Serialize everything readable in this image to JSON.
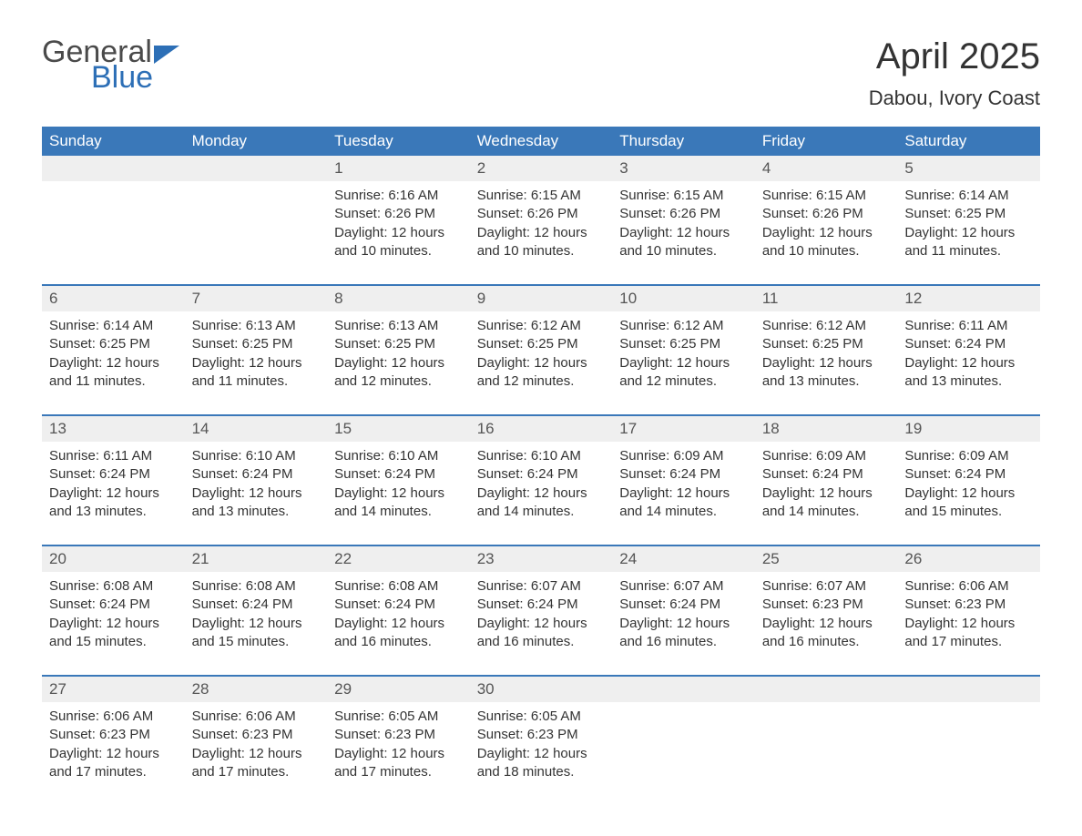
{
  "brand": {
    "word1": "General",
    "word2": "Blue"
  },
  "title": "April 2025",
  "location": "Dabou, Ivory Coast",
  "styling": {
    "header_bg": "#3a78b9",
    "header_fg": "#ffffff",
    "daynum_bg": "#efefef",
    "page_bg": "#ffffff",
    "text_color": "#333333",
    "brand_blue": "#2d6fb6",
    "font_family": "Arial",
    "title_fontsize_pt": 30,
    "location_fontsize_pt": 16,
    "header_fontsize_pt": 13,
    "body_fontsize_pt": 11
  },
  "day_headers": [
    "Sunday",
    "Monday",
    "Tuesday",
    "Wednesday",
    "Thursday",
    "Friday",
    "Saturday"
  ],
  "weeks": [
    [
      null,
      null,
      {
        "n": "1",
        "sr": "Sunrise: 6:16 AM",
        "ss": "Sunset: 6:26 PM",
        "d1": "Daylight: 12 hours",
        "d2": "and 10 minutes."
      },
      {
        "n": "2",
        "sr": "Sunrise: 6:15 AM",
        "ss": "Sunset: 6:26 PM",
        "d1": "Daylight: 12 hours",
        "d2": "and 10 minutes."
      },
      {
        "n": "3",
        "sr": "Sunrise: 6:15 AM",
        "ss": "Sunset: 6:26 PM",
        "d1": "Daylight: 12 hours",
        "d2": "and 10 minutes."
      },
      {
        "n": "4",
        "sr": "Sunrise: 6:15 AM",
        "ss": "Sunset: 6:26 PM",
        "d1": "Daylight: 12 hours",
        "d2": "and 10 minutes."
      },
      {
        "n": "5",
        "sr": "Sunrise: 6:14 AM",
        "ss": "Sunset: 6:25 PM",
        "d1": "Daylight: 12 hours",
        "d2": "and 11 minutes."
      }
    ],
    [
      {
        "n": "6",
        "sr": "Sunrise: 6:14 AM",
        "ss": "Sunset: 6:25 PM",
        "d1": "Daylight: 12 hours",
        "d2": "and 11 minutes."
      },
      {
        "n": "7",
        "sr": "Sunrise: 6:13 AM",
        "ss": "Sunset: 6:25 PM",
        "d1": "Daylight: 12 hours",
        "d2": "and 11 minutes."
      },
      {
        "n": "8",
        "sr": "Sunrise: 6:13 AM",
        "ss": "Sunset: 6:25 PM",
        "d1": "Daylight: 12 hours",
        "d2": "and 12 minutes."
      },
      {
        "n": "9",
        "sr": "Sunrise: 6:12 AM",
        "ss": "Sunset: 6:25 PM",
        "d1": "Daylight: 12 hours",
        "d2": "and 12 minutes."
      },
      {
        "n": "10",
        "sr": "Sunrise: 6:12 AM",
        "ss": "Sunset: 6:25 PM",
        "d1": "Daylight: 12 hours",
        "d2": "and 12 minutes."
      },
      {
        "n": "11",
        "sr": "Sunrise: 6:12 AM",
        "ss": "Sunset: 6:25 PM",
        "d1": "Daylight: 12 hours",
        "d2": "and 13 minutes."
      },
      {
        "n": "12",
        "sr": "Sunrise: 6:11 AM",
        "ss": "Sunset: 6:24 PM",
        "d1": "Daylight: 12 hours",
        "d2": "and 13 minutes."
      }
    ],
    [
      {
        "n": "13",
        "sr": "Sunrise: 6:11 AM",
        "ss": "Sunset: 6:24 PM",
        "d1": "Daylight: 12 hours",
        "d2": "and 13 minutes."
      },
      {
        "n": "14",
        "sr": "Sunrise: 6:10 AM",
        "ss": "Sunset: 6:24 PM",
        "d1": "Daylight: 12 hours",
        "d2": "and 13 minutes."
      },
      {
        "n": "15",
        "sr": "Sunrise: 6:10 AM",
        "ss": "Sunset: 6:24 PM",
        "d1": "Daylight: 12 hours",
        "d2": "and 14 minutes."
      },
      {
        "n": "16",
        "sr": "Sunrise: 6:10 AM",
        "ss": "Sunset: 6:24 PM",
        "d1": "Daylight: 12 hours",
        "d2": "and 14 minutes."
      },
      {
        "n": "17",
        "sr": "Sunrise: 6:09 AM",
        "ss": "Sunset: 6:24 PM",
        "d1": "Daylight: 12 hours",
        "d2": "and 14 minutes."
      },
      {
        "n": "18",
        "sr": "Sunrise: 6:09 AM",
        "ss": "Sunset: 6:24 PM",
        "d1": "Daylight: 12 hours",
        "d2": "and 14 minutes."
      },
      {
        "n": "19",
        "sr": "Sunrise: 6:09 AM",
        "ss": "Sunset: 6:24 PM",
        "d1": "Daylight: 12 hours",
        "d2": "and 15 minutes."
      }
    ],
    [
      {
        "n": "20",
        "sr": "Sunrise: 6:08 AM",
        "ss": "Sunset: 6:24 PM",
        "d1": "Daylight: 12 hours",
        "d2": "and 15 minutes."
      },
      {
        "n": "21",
        "sr": "Sunrise: 6:08 AM",
        "ss": "Sunset: 6:24 PM",
        "d1": "Daylight: 12 hours",
        "d2": "and 15 minutes."
      },
      {
        "n": "22",
        "sr": "Sunrise: 6:08 AM",
        "ss": "Sunset: 6:24 PM",
        "d1": "Daylight: 12 hours",
        "d2": "and 16 minutes."
      },
      {
        "n": "23",
        "sr": "Sunrise: 6:07 AM",
        "ss": "Sunset: 6:24 PM",
        "d1": "Daylight: 12 hours",
        "d2": "and 16 minutes."
      },
      {
        "n": "24",
        "sr": "Sunrise: 6:07 AM",
        "ss": "Sunset: 6:24 PM",
        "d1": "Daylight: 12 hours",
        "d2": "and 16 minutes."
      },
      {
        "n": "25",
        "sr": "Sunrise: 6:07 AM",
        "ss": "Sunset: 6:23 PM",
        "d1": "Daylight: 12 hours",
        "d2": "and 16 minutes."
      },
      {
        "n": "26",
        "sr": "Sunrise: 6:06 AM",
        "ss": "Sunset: 6:23 PM",
        "d1": "Daylight: 12 hours",
        "d2": "and 17 minutes."
      }
    ],
    [
      {
        "n": "27",
        "sr": "Sunrise: 6:06 AM",
        "ss": "Sunset: 6:23 PM",
        "d1": "Daylight: 12 hours",
        "d2": "and 17 minutes."
      },
      {
        "n": "28",
        "sr": "Sunrise: 6:06 AM",
        "ss": "Sunset: 6:23 PM",
        "d1": "Daylight: 12 hours",
        "d2": "and 17 minutes."
      },
      {
        "n": "29",
        "sr": "Sunrise: 6:05 AM",
        "ss": "Sunset: 6:23 PM",
        "d1": "Daylight: 12 hours",
        "d2": "and 17 minutes."
      },
      {
        "n": "30",
        "sr": "Sunrise: 6:05 AM",
        "ss": "Sunset: 6:23 PM",
        "d1": "Daylight: 12 hours",
        "d2": "and 18 minutes."
      },
      null,
      null,
      null
    ]
  ]
}
